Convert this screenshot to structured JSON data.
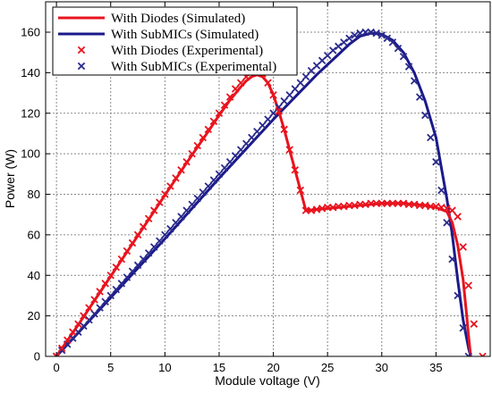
{
  "chart_data": {
    "type": "line",
    "xlabel": "Module voltage (V)",
    "ylabel": "Power (W)",
    "xlim": [
      -1,
      40
    ],
    "ylim": [
      0,
      175
    ],
    "xticks": [
      0,
      5,
      10,
      15,
      20,
      25,
      30,
      35
    ],
    "yticks": [
      0,
      20,
      40,
      60,
      80,
      100,
      120,
      140,
      160
    ],
    "grid": true,
    "legend_position": "top-left",
    "series": [
      {
        "name": "With Diodes (Simulated)",
        "kind": "line",
        "color": "#e8141e",
        "x": [
          0,
          2,
          4,
          6,
          8,
          10,
          12,
          14,
          15,
          16,
          17,
          17.5,
          18,
          18.5,
          19,
          19.5,
          20,
          20.5,
          21,
          21.5,
          22,
          22.5,
          23,
          24,
          26,
          28,
          30,
          32,
          34,
          35,
          36,
          36.5,
          37,
          37.5,
          37.8,
          38,
          38.2
        ],
        "y": [
          0,
          15.5,
          31.5,
          47.5,
          63.5,
          79.5,
          95.5,
          111,
          119,
          126.5,
          133,
          136,
          138,
          139,
          138,
          135,
          129,
          121,
          112,
          102,
          92,
          82,
          72,
          72.5,
          73.5,
          74.5,
          75.5,
          75.5,
          74.5,
          73.5,
          71.5,
          66,
          55,
          38,
          22,
          10,
          0
        ]
      },
      {
        "name": "With SubMICs (Simulated)",
        "kind": "line",
        "color": "#1a1a8a",
        "x": [
          0,
          5,
          10,
          15,
          20,
          24,
          26,
          27,
          28,
          29,
          30,
          31,
          32,
          33,
          34,
          35,
          36,
          36.5,
          37,
          37.5,
          38,
          38.2
        ],
        "y": [
          0,
          29,
          58,
          88,
          117,
          139,
          149,
          154,
          158,
          159.5,
          159,
          156,
          150,
          140,
          126,
          108,
          78,
          60,
          38,
          18,
          4,
          0
        ]
      },
      {
        "name": "With Diodes (Experimental)",
        "kind": "marker",
        "color": "#e8141e",
        "x": [
          0,
          0.5,
          1,
          1.5,
          2,
          2.5,
          3,
          3.5,
          4,
          4.5,
          5,
          5.5,
          6,
          6.5,
          7,
          7.5,
          8,
          8.5,
          9,
          9.5,
          10,
          10.5,
          11,
          11.5,
          12,
          12.5,
          13,
          13.5,
          14,
          14.5,
          15,
          15.5,
          16,
          16.5,
          17,
          17.5,
          18,
          18.5,
          19,
          19.5,
          20,
          20.5,
          21,
          21.5,
          22,
          22.5,
          23,
          23.5,
          24,
          24.5,
          25,
          25.5,
          26,
          26.5,
          27,
          27.5,
          28,
          28.5,
          29,
          29.5,
          30,
          30.5,
          31,
          31.5,
          32,
          32.5,
          33,
          33.5,
          34,
          34.5,
          35,
          35.5,
          36,
          36.5,
          37,
          37.5,
          38,
          38.5,
          39.3
        ],
        "y": [
          0,
          4,
          8,
          12,
          16,
          20,
          24,
          28,
          32,
          36,
          40,
          44,
          48,
          52,
          56,
          60,
          64,
          68,
          72,
          76,
          80,
          84,
          88,
          92,
          96,
          100,
          104,
          108,
          112,
          116,
          120,
          124,
          128,
          132,
          135,
          138,
          140,
          140.5,
          139.5,
          135,
          129,
          121,
          112,
          102,
          92,
          82,
          72,
          72,
          72.5,
          73,
          73.5,
          73.5,
          74,
          74,
          74.5,
          74.5,
          75,
          75,
          75.5,
          75.5,
          75.5,
          75.5,
          75.5,
          75.5,
          75.5,
          75,
          75,
          74.5,
          74.5,
          74,
          74,
          73.5,
          73,
          72,
          69,
          54,
          35,
          16,
          0
        ]
      },
      {
        "name": "With SubMICs (Experimental)",
        "kind": "marker",
        "color": "#2a2a8c",
        "x": [
          0,
          0.5,
          1,
          1.5,
          2,
          2.5,
          3,
          3.5,
          4,
          4.5,
          5,
          5.5,
          6,
          6.5,
          7,
          7.5,
          8,
          8.5,
          9,
          9.5,
          10,
          10.5,
          11,
          11.5,
          12,
          12.5,
          13,
          13.5,
          14,
          14.5,
          15,
          15.5,
          16,
          16.5,
          17,
          17.5,
          18,
          18.5,
          19,
          19.5,
          20,
          20.5,
          21,
          21.5,
          22,
          22.5,
          23,
          23.5,
          24,
          24.5,
          25,
          25.5,
          26,
          26.5,
          27,
          27.5,
          28,
          28.5,
          29,
          29.5,
          30,
          30.5,
          31,
          31.5,
          32,
          32.5,
          33,
          33.5,
          34,
          34.5,
          35,
          35.5,
          36,
          36.5,
          37,
          37.5,
          38
        ],
        "y": [
          0,
          3,
          6,
          9,
          12,
          15,
          18,
          21,
          24,
          27,
          30,
          33,
          36,
          39,
          42,
          45,
          48,
          51,
          54,
          57,
          60,
          63,
          66,
          69,
          72,
          75,
          78,
          81,
          84,
          87,
          90,
          93,
          96,
          99,
          102,
          105,
          108,
          111,
          114,
          117,
          120,
          123,
          126,
          129,
          132,
          135,
          138,
          141,
          143.5,
          146,
          148.5,
          151,
          153,
          155,
          157,
          158.5,
          159.5,
          160,
          160,
          159.5,
          158.5,
          157,
          155,
          152,
          148,
          143,
          136,
          128,
          119,
          108,
          96,
          82,
          66,
          48,
          30,
          14,
          0
        ]
      }
    ]
  }
}
